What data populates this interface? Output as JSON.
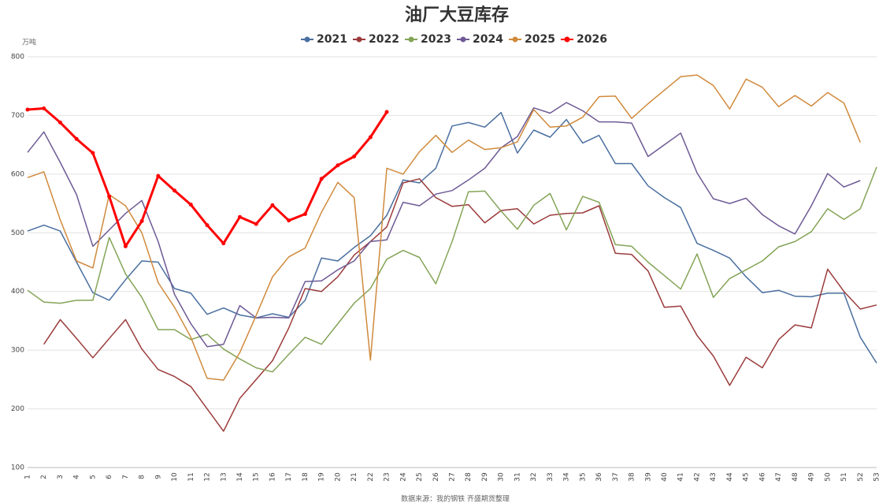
{
  "chart_data": {
    "type": "line",
    "title": "油厂大豆库存",
    "y_unit": "万吨",
    "source": "数据来源：我的钢铁 齐盛期货整理",
    "x": [
      1,
      2,
      3,
      4,
      5,
      6,
      7,
      8,
      9,
      10,
      11,
      12,
      13,
      14,
      15,
      16,
      17,
      18,
      19,
      20,
      21,
      22,
      23,
      24,
      25,
      26,
      27,
      28,
      29,
      30,
      31,
      32,
      33,
      34,
      35,
      36,
      37,
      38,
      39,
      40,
      41,
      42,
      43,
      44,
      45,
      46,
      47,
      48,
      49,
      50,
      51,
      52,
      53
    ],
    "xlim": [
      1,
      53
    ],
    "ylim": [
      100,
      800
    ],
    "yticks": [
      100,
      200,
      300,
      400,
      500,
      600,
      700,
      800
    ],
    "grid": true,
    "series": [
      {
        "name": "2021",
        "color": "#4a6fa0",
        "values": [
          503,
          513,
          503,
          450,
          398,
          385,
          420,
          452,
          450,
          405,
          397,
          361,
          372,
          360,
          355,
          362,
          356,
          385,
          457,
          452,
          475,
          495,
          530,
          590,
          585,
          610,
          682,
          688,
          680,
          705,
          636,
          675,
          663,
          693,
          653,
          666,
          618,
          618,
          580,
          560,
          543,
          482,
          470,
          457,
          425,
          398,
          402,
          392,
          391,
          397,
          397,
          322,
          278
        ]
      },
      {
        "name": "2022",
        "color": "#9b3b3b",
        "values": [
          null,
          310,
          352,
          320,
          287,
          320,
          352,
          302,
          267,
          255,
          238,
          200,
          162,
          218,
          250,
          282,
          338,
          405,
          400,
          425,
          462,
          485,
          510,
          585,
          592,
          560,
          545,
          548,
          517,
          538,
          541,
          515,
          530,
          533,
          534,
          546,
          465,
          463,
          435,
          373,
          375,
          325,
          290,
          240,
          288,
          270,
          318,
          343,
          338,
          438,
          400,
          370,
          377
        ]
      },
      {
        "name": "2023",
        "color": "#84a457",
        "values": [
          402,
          382,
          380,
          385,
          385,
          492,
          430,
          390,
          335,
          335,
          318,
          327,
          302,
          285,
          270,
          263,
          293,
          322,
          310,
          345,
          380,
          405,
          455,
          470,
          458,
          413,
          485,
          570,
          571,
          537,
          506,
          547,
          567,
          505,
          562,
          552,
          480,
          477,
          450,
          427,
          404,
          464,
          390,
          422,
          437,
          452,
          476,
          485,
          502,
          541,
          523,
          541,
          612
        ]
      },
      {
        "name": "2024",
        "color": "#6e5a96",
        "values": [
          637,
          672,
          620,
          565,
          477,
          505,
          533,
          555,
          485,
          395,
          345,
          306,
          310,
          376,
          355,
          356,
          355,
          417,
          418,
          437,
          452,
          485,
          488,
          552,
          546,
          566,
          572,
          590,
          610,
          645,
          664,
          713,
          704,
          722,
          708,
          689,
          689,
          687,
          630,
          650,
          670,
          602,
          558,
          550,
          559,
          531,
          512,
          498,
          546,
          601,
          578,
          589,
          null
        ]
      },
      {
        "name": "2025",
        "color": "#d08a3c",
        "values": [
          594,
          604,
          522,
          452,
          440,
          565,
          546,
          500,
          415,
          373,
          322,
          252,
          249,
          296,
          359,
          425,
          459,
          474,
          535,
          586,
          560,
          283,
          610,
          600,
          638,
          666,
          637,
          658,
          642,
          645,
          655,
          710,
          680,
          682,
          697,
          732,
          733,
          695,
          720,
          743,
          766,
          769,
          751,
          711,
          762,
          748,
          715,
          734,
          716,
          739,
          721,
          654,
          null
        ]
      },
      {
        "name": "2026",
        "color": "#ff0000",
        "values": [
          710,
          712,
          688,
          660,
          636,
          562,
          477,
          520,
          597,
          572,
          548,
          513,
          482,
          527,
          515,
          547,
          521,
          532,
          592,
          615,
          630,
          663,
          706,
          null,
          null,
          null,
          null,
          null,
          null,
          null,
          null,
          null,
          null,
          null,
          null,
          null,
          null,
          null,
          null,
          null,
          null,
          null,
          null,
          null,
          null,
          null,
          null,
          null,
          null,
          null,
          null,
          null,
          null
        ]
      }
    ]
  }
}
